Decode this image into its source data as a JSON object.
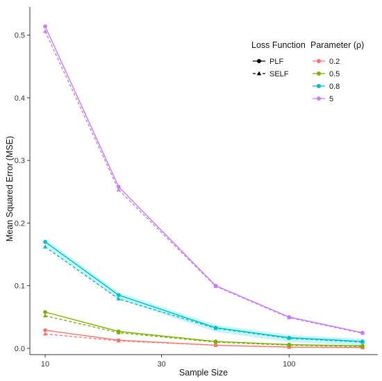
{
  "chart_data": {
    "type": "line",
    "xlabel": "Sample Size",
    "ylabel": "Mean Squared Error (MSE)",
    "x_ticks": [
      "10",
      "30",
      "100"
    ],
    "y_ticks": [
      "0.0",
      "0.1",
      "0.2",
      "0.3",
      "0.4",
      "0.5"
    ],
    "ylim": [
      -0.01,
      0.545
    ],
    "grid": false,
    "legend_position": "top-right",
    "x": [
      10,
      20,
      50,
      100,
      200
    ],
    "legend_loss": {
      "title": "Loss Function",
      "entries": [
        {
          "label": "PLF",
          "line_style": "solid",
          "marker": "circle"
        },
        {
          "label": "SELF",
          "line_style": "dashed",
          "marker": "triangle"
        }
      ]
    },
    "legend_param": {
      "title": "Parameter (ρ)",
      "entries": [
        {
          "label": "0.2",
          "color": "#F8766D"
        },
        {
          "label": "0.5",
          "color": "#7CAE00"
        },
        {
          "label": "0.8",
          "color": "#00BFC4"
        },
        {
          "label": "5",
          "color": "#C77CFF"
        }
      ]
    },
    "series": [
      {
        "param": "0.2",
        "loss": "PLF",
        "color": "#F8766D",
        "values": [
          0.029,
          0.013,
          0.005,
          0.002,
          0.0015
        ]
      },
      {
        "param": "0.2",
        "loss": "SELF",
        "color": "#F8766D",
        "values": [
          0.023,
          0.012,
          0.005,
          0.002,
          0.0012
        ]
      },
      {
        "param": "0.5",
        "loss": "PLF",
        "color": "#7CAE00",
        "values": [
          0.058,
          0.027,
          0.011,
          0.006,
          0.004
        ]
      },
      {
        "param": "0.5",
        "loss": "SELF",
        "color": "#7CAE00",
        "values": [
          0.052,
          0.025,
          0.01,
          0.005,
          0.003
        ]
      },
      {
        "param": "0.8",
        "loss": "PLF",
        "color": "#00BFC4",
        "values": [
          0.17,
          0.085,
          0.033,
          0.017,
          0.011
        ]
      },
      {
        "param": "0.8",
        "loss": "SELF",
        "color": "#00BFC4",
        "values": [
          0.162,
          0.079,
          0.032,
          0.016,
          0.01
        ]
      },
      {
        "param": "5",
        "loss": "PLF",
        "color": "#C77CFF",
        "values": [
          0.514,
          0.258,
          0.1,
          0.05,
          0.025
        ]
      },
      {
        "param": "5",
        "loss": "SELF",
        "color": "#C77CFF",
        "values": [
          0.506,
          0.253,
          0.099,
          0.049,
          0.024
        ]
      }
    ]
  }
}
